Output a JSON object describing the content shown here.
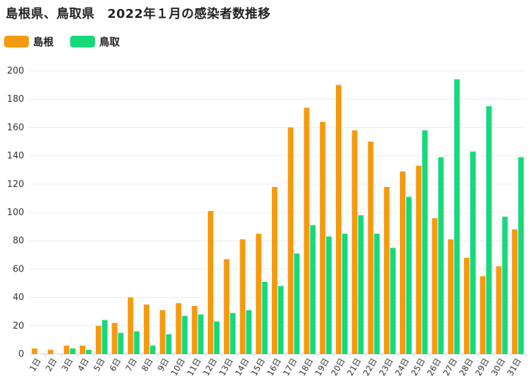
{
  "chart_data": {
    "type": "bar",
    "title": "島根県、鳥取県　2022年１月の感染者数推移",
    "categories": [
      "1日",
      "2日",
      "3日",
      "4日",
      "5日",
      "6日",
      "7日",
      "8日",
      "9日",
      "10日",
      "11日",
      "12日",
      "13日",
      "14日",
      "15日",
      "16日",
      "17日",
      "18日",
      "19日",
      "20日",
      "21日",
      "22日",
      "23日",
      "24日",
      "25日",
      "26日",
      "27日",
      "28日",
      "29日",
      "30日",
      "31日"
    ],
    "series": [
      {
        "name": "島根",
        "color": "#f59a10",
        "values": [
          4,
          3,
          6,
          6,
          20,
          22,
          40,
          35,
          31,
          36,
          34,
          101,
          67,
          81,
          85,
          118,
          160,
          174,
          164,
          190,
          158,
          150,
          118,
          129,
          133,
          96,
          81,
          68,
          55,
          62,
          88
        ]
      },
      {
        "name": "鳥取",
        "color": "#17d97a",
        "values": [
          0,
          0,
          4,
          3,
          24,
          15,
          16,
          6,
          14,
          27,
          28,
          23,
          29,
          31,
          51,
          48,
          71,
          91,
          83,
          85,
          98,
          85,
          75,
          111,
          158,
          139,
          194,
          143,
          175,
          97,
          139
        ]
      }
    ],
    "ylim": [
      0,
      200
    ],
    "yticks": [
      0,
      20,
      40,
      60,
      80,
      100,
      120,
      140,
      160,
      180,
      200
    ],
    "grid": true,
    "legend": "top-left"
  }
}
